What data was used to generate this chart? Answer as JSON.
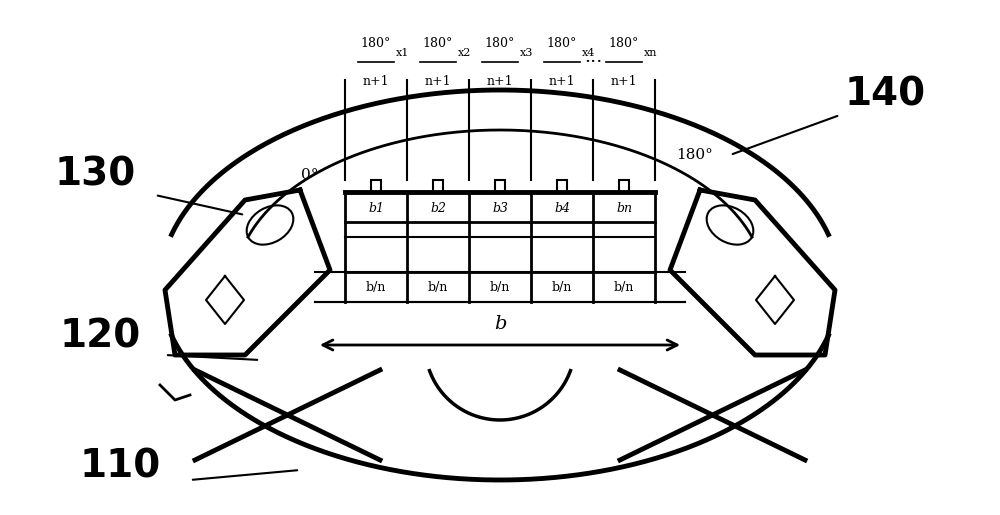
{
  "bg_color": "#ffffff",
  "line_color": "#000000",
  "magnet_labels": [
    "b1",
    "b2",
    "b3",
    "b4",
    "bn"
  ],
  "bn_labels": [
    "b/n",
    "b/n",
    "b/n",
    "b/n",
    "b/n"
  ],
  "frac_suffixes": [
    "x1",
    "x2",
    "x3",
    "x4",
    "xn"
  ],
  "ref_labels": [
    "110",
    "120",
    "130",
    "140"
  ],
  "figsize": [
    10.0,
    5.15
  ],
  "dpi": 100
}
